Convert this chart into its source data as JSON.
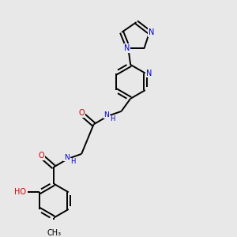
{
  "bg_color": "#e8e8e8",
  "bond_color": "#000000",
  "n_color": "#0000cd",
  "o_color": "#cc0000",
  "line_width": 1.4,
  "font_size": 7.0,
  "fig_w": 3.0,
  "fig_h": 3.0,
  "dpi": 100,
  "xlim": [
    0,
    10
  ],
  "ylim": [
    0,
    10
  ]
}
